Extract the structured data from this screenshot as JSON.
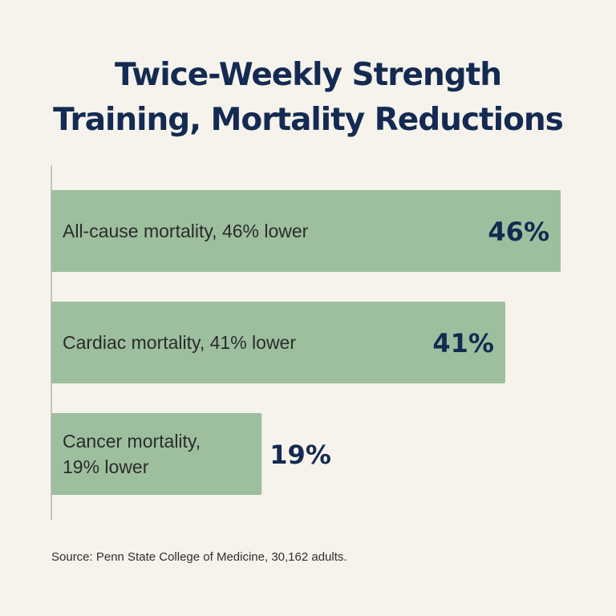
{
  "title_lines": [
    "Twice-Weekly Strength",
    "Training, Mortality Reductions"
  ],
  "source": "Source: Penn State College of Medicine, 30,162 adults.",
  "colors": {
    "background": "#f5f3ec",
    "bar": "#9dbf9e",
    "value_label": "#142a52",
    "category_label": "#2b2b2b",
    "axis": "#b5b5b5"
  },
  "chart_data": {
    "type": "bar",
    "orientation": "horizontal",
    "title": "Twice-Weekly Strength Training, Mortality Reductions",
    "categories": [
      [
        "All-cause mortality, 46% lower"
      ],
      [
        "Cardiac mortality, 41% lower"
      ],
      [
        "Cancer mortality,",
        "19% lower"
      ]
    ],
    "values": [
      46,
      41,
      19
    ],
    "value_labels": [
      "46%",
      "41%",
      "19%"
    ],
    "unit": "%",
    "xlim": [
      0,
      46
    ],
    "grid": false,
    "legend": "none"
  }
}
